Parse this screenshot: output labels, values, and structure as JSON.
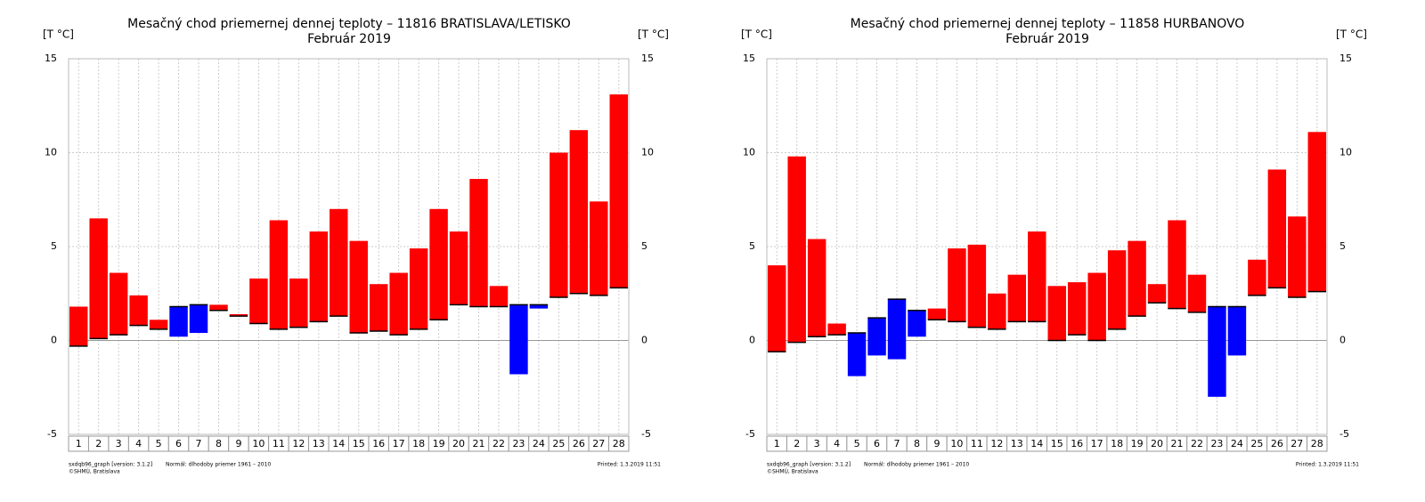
{
  "chart_data": [
    {
      "type": "floating-bar",
      "title": "Mesačný chod priemernej dennej teploty – 11816 BRATISLAVA/LETISKO",
      "subtitle": "Február 2019",
      "ylabel": "[T °C]",
      "categories": [
        "1",
        "2",
        "3",
        "4",
        "5",
        "6",
        "7",
        "8",
        "9",
        "10",
        "11",
        "12",
        "13",
        "14",
        "15",
        "16",
        "17",
        "18",
        "19",
        "20",
        "21",
        "22",
        "23",
        "24",
        "25",
        "26",
        "27",
        "28"
      ],
      "values": [
        1.8,
        6.5,
        3.6,
        2.4,
        1.1,
        0.2,
        0.4,
        1.9,
        1.4,
        3.3,
        6.4,
        3.3,
        5.8,
        7.0,
        5.3,
        3.0,
        3.6,
        4.9,
        7.0,
        5.8,
        8.6,
        2.9,
        -1.8,
        1.7,
        10.0,
        11.2,
        7.4,
        13.1
      ],
      "normal_values": [
        -0.3,
        0.1,
        0.3,
        0.8,
        0.6,
        1.8,
        1.9,
        1.6,
        1.3,
        0.9,
        0.6,
        0.7,
        1.0,
        1.3,
        0.4,
        0.5,
        0.3,
        0.6,
        1.1,
        1.9,
        1.8,
        1.8,
        1.9,
        1.9,
        2.3,
        2.5,
        2.4,
        2.8
      ],
      "color_above": "#ff0000",
      "color_below": "#0000ff",
      "ylim": [
        -5,
        15
      ],
      "yticks": [
        -5,
        0,
        5,
        10,
        15
      ],
      "grid": true,
      "footer_version": "sxdqb96_graph [version: 3.1.2]",
      "footer_copyright": "©SHMÚ, Bratislava",
      "footer_normal": "Normál: dlhodoby priemer 1961 – 2010",
      "footer_printed": "Printed: 1.3.2019  11:51"
    },
    {
      "type": "floating-bar",
      "title": "Mesačný chod priemernej dennej teploty – 11858 HURBANOVO",
      "subtitle": "Február 2019",
      "ylabel": "[T °C]",
      "categories": [
        "1",
        "2",
        "3",
        "4",
        "5",
        "6",
        "7",
        "8",
        "9",
        "10",
        "11",
        "12",
        "13",
        "14",
        "15",
        "16",
        "17",
        "18",
        "19",
        "20",
        "21",
        "22",
        "23",
        "24",
        "25",
        "26",
        "27",
        "28"
      ],
      "values": [
        4.0,
        9.8,
        5.4,
        0.9,
        -1.9,
        -0.8,
        -1.0,
        0.2,
        1.7,
        4.9,
        5.1,
        2.5,
        3.5,
        5.8,
        2.9,
        3.1,
        3.6,
        4.8,
        5.3,
        3.0,
        6.4,
        3.5,
        -3.0,
        -0.8,
        4.3,
        9.1,
        6.6,
        11.1
      ],
      "normal_values": [
        -0.6,
        -0.1,
        0.2,
        0.3,
        0.4,
        1.2,
        2.2,
        1.6,
        1.1,
        1.0,
        0.7,
        0.6,
        1.0,
        1.0,
        0.0,
        0.3,
        0.0,
        0.6,
        1.3,
        2.0,
        1.7,
        1.5,
        1.8,
        1.8,
        2.4,
        2.8,
        2.3,
        2.6
      ],
      "color_above": "#ff0000",
      "color_below": "#0000ff",
      "ylim": [
        -5,
        15
      ],
      "yticks": [
        -5,
        0,
        5,
        10,
        15
      ],
      "grid": true,
      "footer_version": "sxdqb96_graph [version: 3.1.2]",
      "footer_copyright": "©SHMÚ, Bratislava",
      "footer_normal": "Normál: dlhodoby priemer 1961 – 2010",
      "footer_printed": "Printed: 1.3.2019  11:51"
    }
  ]
}
